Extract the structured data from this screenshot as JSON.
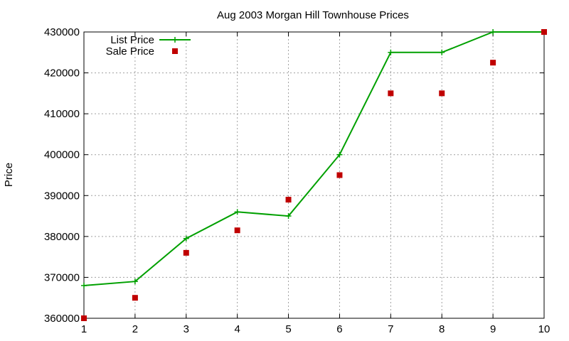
{
  "chart_data": {
    "type": "line",
    "title": "Aug 2003 Morgan Hill Townhouse Prices",
    "xlabel": "",
    "ylabel": "Price",
    "xlim": [
      1,
      10
    ],
    "ylim": [
      360000,
      430000
    ],
    "xticks": [
      1,
      2,
      3,
      4,
      5,
      6,
      7,
      8,
      9,
      10
    ],
    "yticks": [
      360000,
      370000,
      380000,
      390000,
      400000,
      410000,
      420000,
      430000
    ],
    "grid": true,
    "legend_position": "top-left",
    "x": [
      1,
      2,
      3,
      4,
      5,
      6,
      7,
      8,
      9,
      10
    ],
    "series": [
      {
        "name": "List Price",
        "style": "line-with-plus-markers",
        "color": "#00a000",
        "values": [
          368000,
          369000,
          379500,
          386000,
          385000,
          400000,
          425000,
          425000,
          430000,
          430000
        ]
      },
      {
        "name": "Sale Price",
        "style": "square-markers",
        "color": "#c00000",
        "values": [
          360000,
          365000,
          376000,
          381500,
          389000,
          395000,
          415000,
          415000,
          422500,
          430000
        ]
      }
    ]
  }
}
